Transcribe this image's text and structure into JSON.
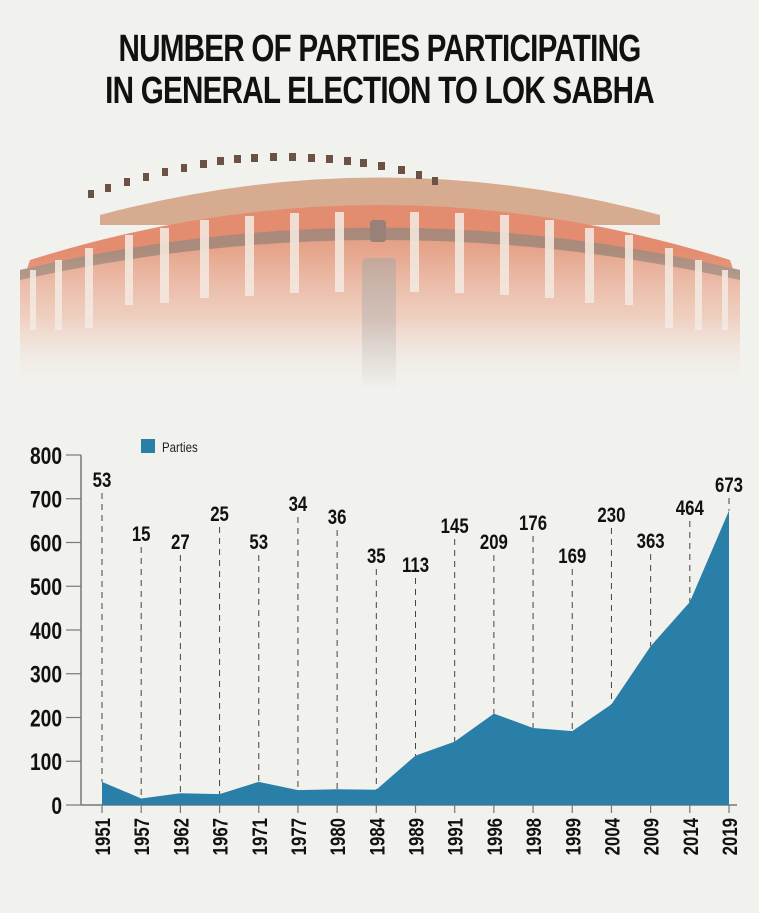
{
  "title": {
    "line1": "NUMBER OF PARTIES PARTICIPATING",
    "line2": "IN GENERAL ELECTION TO LOK SABHA"
  },
  "chart_data": {
    "type": "area",
    "title": "NUMBER OF PARTIES PARTICIPATING IN GENERAL ELECTION TO LOK SABHA",
    "xlabel": "",
    "ylabel": "",
    "categories": [
      "1951",
      "1957",
      "1962",
      "1967",
      "1971",
      "1977",
      "1980",
      "1984",
      "1989",
      "1991",
      "1996",
      "1998",
      "1999",
      "2004",
      "2009",
      "2014",
      "2019"
    ],
    "series": [
      {
        "name": "Parties",
        "color": "#2a7fa8",
        "values": [
          53,
          15,
          27,
          25,
          53,
          34,
          36,
          35,
          113,
          145,
          209,
          176,
          169,
          230,
          363,
          464,
          673
        ]
      }
    ],
    "ylim": [
      0,
      800
    ],
    "yticks": [
      0,
      100,
      200,
      300,
      400,
      500,
      600,
      700,
      800
    ],
    "legend": "top-left",
    "grid": false
  }
}
